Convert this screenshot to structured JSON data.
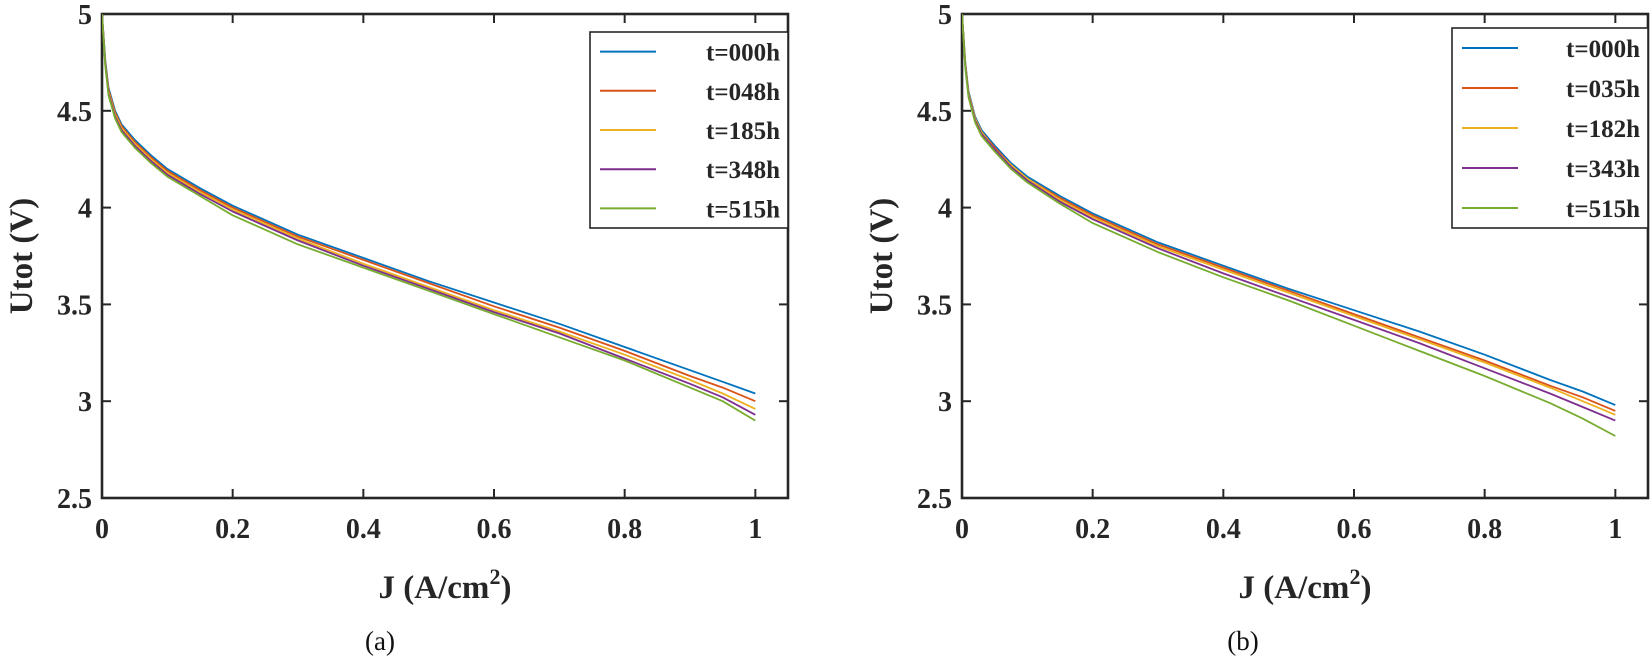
{
  "chart_data": [
    {
      "type": "line",
      "caption": "(a)",
      "xlabel": "J (A/cm",
      "xlabel_sup": "2",
      "xlabel_end": ")",
      "ylabel": "Utot (V)",
      "xlim": [
        0,
        1.05
      ],
      "ylim": [
        2.5,
        5
      ],
      "xticks": [
        0,
        0.2,
        0.4,
        0.6,
        0.8,
        1
      ],
      "xtick_labels": [
        "0",
        "0.2",
        "0.4",
        "0.6",
        "0.8",
        "1"
      ],
      "yticks": [
        2.5,
        3,
        3.5,
        4,
        4.5,
        5
      ],
      "ytick_labels": [
        "2.5",
        "3",
        "3.5",
        "4",
        "4.5",
        "5"
      ],
      "grid": false,
      "legend_position": "top-right",
      "x": [
        0,
        0.005,
        0.01,
        0.02,
        0.03,
        0.05,
        0.075,
        0.1,
        0.15,
        0.2,
        0.3,
        0.4,
        0.5,
        0.6,
        0.7,
        0.8,
        0.9,
        0.95,
        1.0
      ],
      "series": [
        {
          "name": "t=000h",
          "color": "#0072BD",
          "values": [
            5.0,
            4.76,
            4.62,
            4.5,
            4.43,
            4.35,
            4.27,
            4.2,
            4.1,
            4.01,
            3.86,
            3.74,
            3.62,
            3.51,
            3.4,
            3.28,
            3.16,
            3.1,
            3.04
          ]
        },
        {
          "name": "t=048h",
          "color": "#D95319",
          "values": [
            5.0,
            4.75,
            4.61,
            4.49,
            4.42,
            4.34,
            4.26,
            4.19,
            4.09,
            4.0,
            3.85,
            3.73,
            3.61,
            3.49,
            3.38,
            3.26,
            3.13,
            3.07,
            3.0
          ]
        },
        {
          "name": "t=185h",
          "color": "#EDB120",
          "values": [
            5.0,
            4.74,
            4.6,
            4.48,
            4.41,
            4.33,
            4.25,
            4.18,
            4.08,
            3.99,
            3.84,
            3.71,
            3.59,
            3.47,
            3.36,
            3.24,
            3.11,
            3.04,
            2.96
          ]
        },
        {
          "name": "t=348h",
          "color": "#7E2F8E",
          "values": [
            5.0,
            4.74,
            4.59,
            4.47,
            4.4,
            4.32,
            4.24,
            4.17,
            4.07,
            3.98,
            3.83,
            3.7,
            3.58,
            3.46,
            3.35,
            3.22,
            3.09,
            3.02,
            2.93
          ]
        },
        {
          "name": "t=515h",
          "color": "#77AC30",
          "values": [
            5.0,
            4.73,
            4.58,
            4.46,
            4.39,
            4.31,
            4.23,
            4.16,
            4.06,
            3.96,
            3.81,
            3.69,
            3.57,
            3.45,
            3.33,
            3.21,
            3.07,
            3.0,
            2.9
          ]
        }
      ]
    },
    {
      "type": "line",
      "caption": "(b)",
      "xlabel": "J (A/cm",
      "xlabel_sup": "2",
      "xlabel_end": ")",
      "ylabel": "Utot (V)",
      "xlim": [
        0,
        1.05
      ],
      "ylim": [
        2.5,
        5
      ],
      "xticks": [
        0,
        0.2,
        0.4,
        0.6,
        0.8,
        1
      ],
      "xtick_labels": [
        "0",
        "0.2",
        "0.4",
        "0.6",
        "0.8",
        "1"
      ],
      "yticks": [
        2.5,
        3,
        3.5,
        4,
        4.5,
        5
      ],
      "ytick_labels": [
        "2.5",
        "3",
        "3.5",
        "4",
        "4.5",
        "5"
      ],
      "grid": false,
      "legend_position": "top-right",
      "x": [
        0,
        0.005,
        0.01,
        0.02,
        0.03,
        0.05,
        0.075,
        0.1,
        0.15,
        0.2,
        0.3,
        0.4,
        0.5,
        0.6,
        0.7,
        0.8,
        0.9,
        0.95,
        1.0
      ],
      "series": [
        {
          "name": "t=000h",
          "color": "#0072BD",
          "values": [
            5.0,
            4.75,
            4.6,
            4.47,
            4.4,
            4.32,
            4.23,
            4.16,
            4.06,
            3.97,
            3.82,
            3.7,
            3.58,
            3.47,
            3.36,
            3.24,
            3.11,
            3.05,
            2.98
          ]
        },
        {
          "name": "t=035h",
          "color": "#D95319",
          "values": [
            5.0,
            4.74,
            4.59,
            4.46,
            4.39,
            4.31,
            4.22,
            4.15,
            4.05,
            3.96,
            3.81,
            3.69,
            3.57,
            3.45,
            3.33,
            3.21,
            3.08,
            3.02,
            2.95
          ]
        },
        {
          "name": "t=182h",
          "color": "#EDB120",
          "values": [
            5.0,
            4.74,
            4.59,
            4.46,
            4.39,
            4.3,
            4.22,
            4.15,
            4.04,
            3.95,
            3.8,
            3.68,
            3.56,
            3.44,
            3.32,
            3.2,
            3.07,
            3.0,
            2.93
          ]
        },
        {
          "name": "t=343h",
          "color": "#7E2F8E",
          "values": [
            5.0,
            4.73,
            4.58,
            4.45,
            4.38,
            4.3,
            4.21,
            4.14,
            4.03,
            3.94,
            3.79,
            3.66,
            3.54,
            3.42,
            3.3,
            3.17,
            3.04,
            2.97,
            2.9
          ]
        },
        {
          "name": "t=515h",
          "color": "#77AC30",
          "values": [
            5.0,
            4.72,
            4.57,
            4.44,
            4.37,
            4.29,
            4.2,
            4.13,
            4.02,
            3.92,
            3.77,
            3.64,
            3.52,
            3.39,
            3.26,
            3.13,
            2.99,
            2.91,
            2.82
          ]
        }
      ]
    }
  ]
}
